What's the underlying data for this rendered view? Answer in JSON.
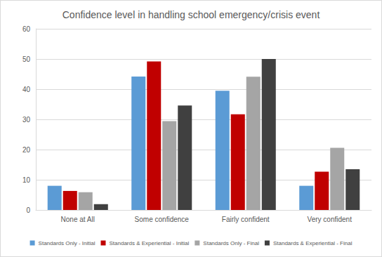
{
  "chart_data": {
    "type": "bar",
    "title": "Confidence level in handling school emergency/crisis event",
    "categories": [
      "None at All",
      "Some confidence",
      "Fairly confident",
      "Very confident"
    ],
    "series": [
      {
        "name": "Standards Only - Initial",
        "color": "#5B9BD5",
        "values": [
          8,
          44.2,
          39.5,
          8
        ]
      },
      {
        "name": "Standards & Experiential - Initial",
        "color": "#C00000",
        "values": [
          6.3,
          49.2,
          31.7,
          12.7
        ]
      },
      {
        "name": "Standards Only - Final",
        "color": "#A5A5A5",
        "values": [
          5.9,
          29.4,
          44.1,
          20.6
        ]
      },
      {
        "name": "Standards & Experiential - Final",
        "color": "#404040",
        "values": [
          1.9,
          34.6,
          50,
          13.5
        ]
      }
    ],
    "ylim": [
      0,
      60
    ],
    "yticks": [
      0,
      10,
      20,
      30,
      40,
      50,
      60
    ],
    "grid": true,
    "legend": "bottom"
  }
}
